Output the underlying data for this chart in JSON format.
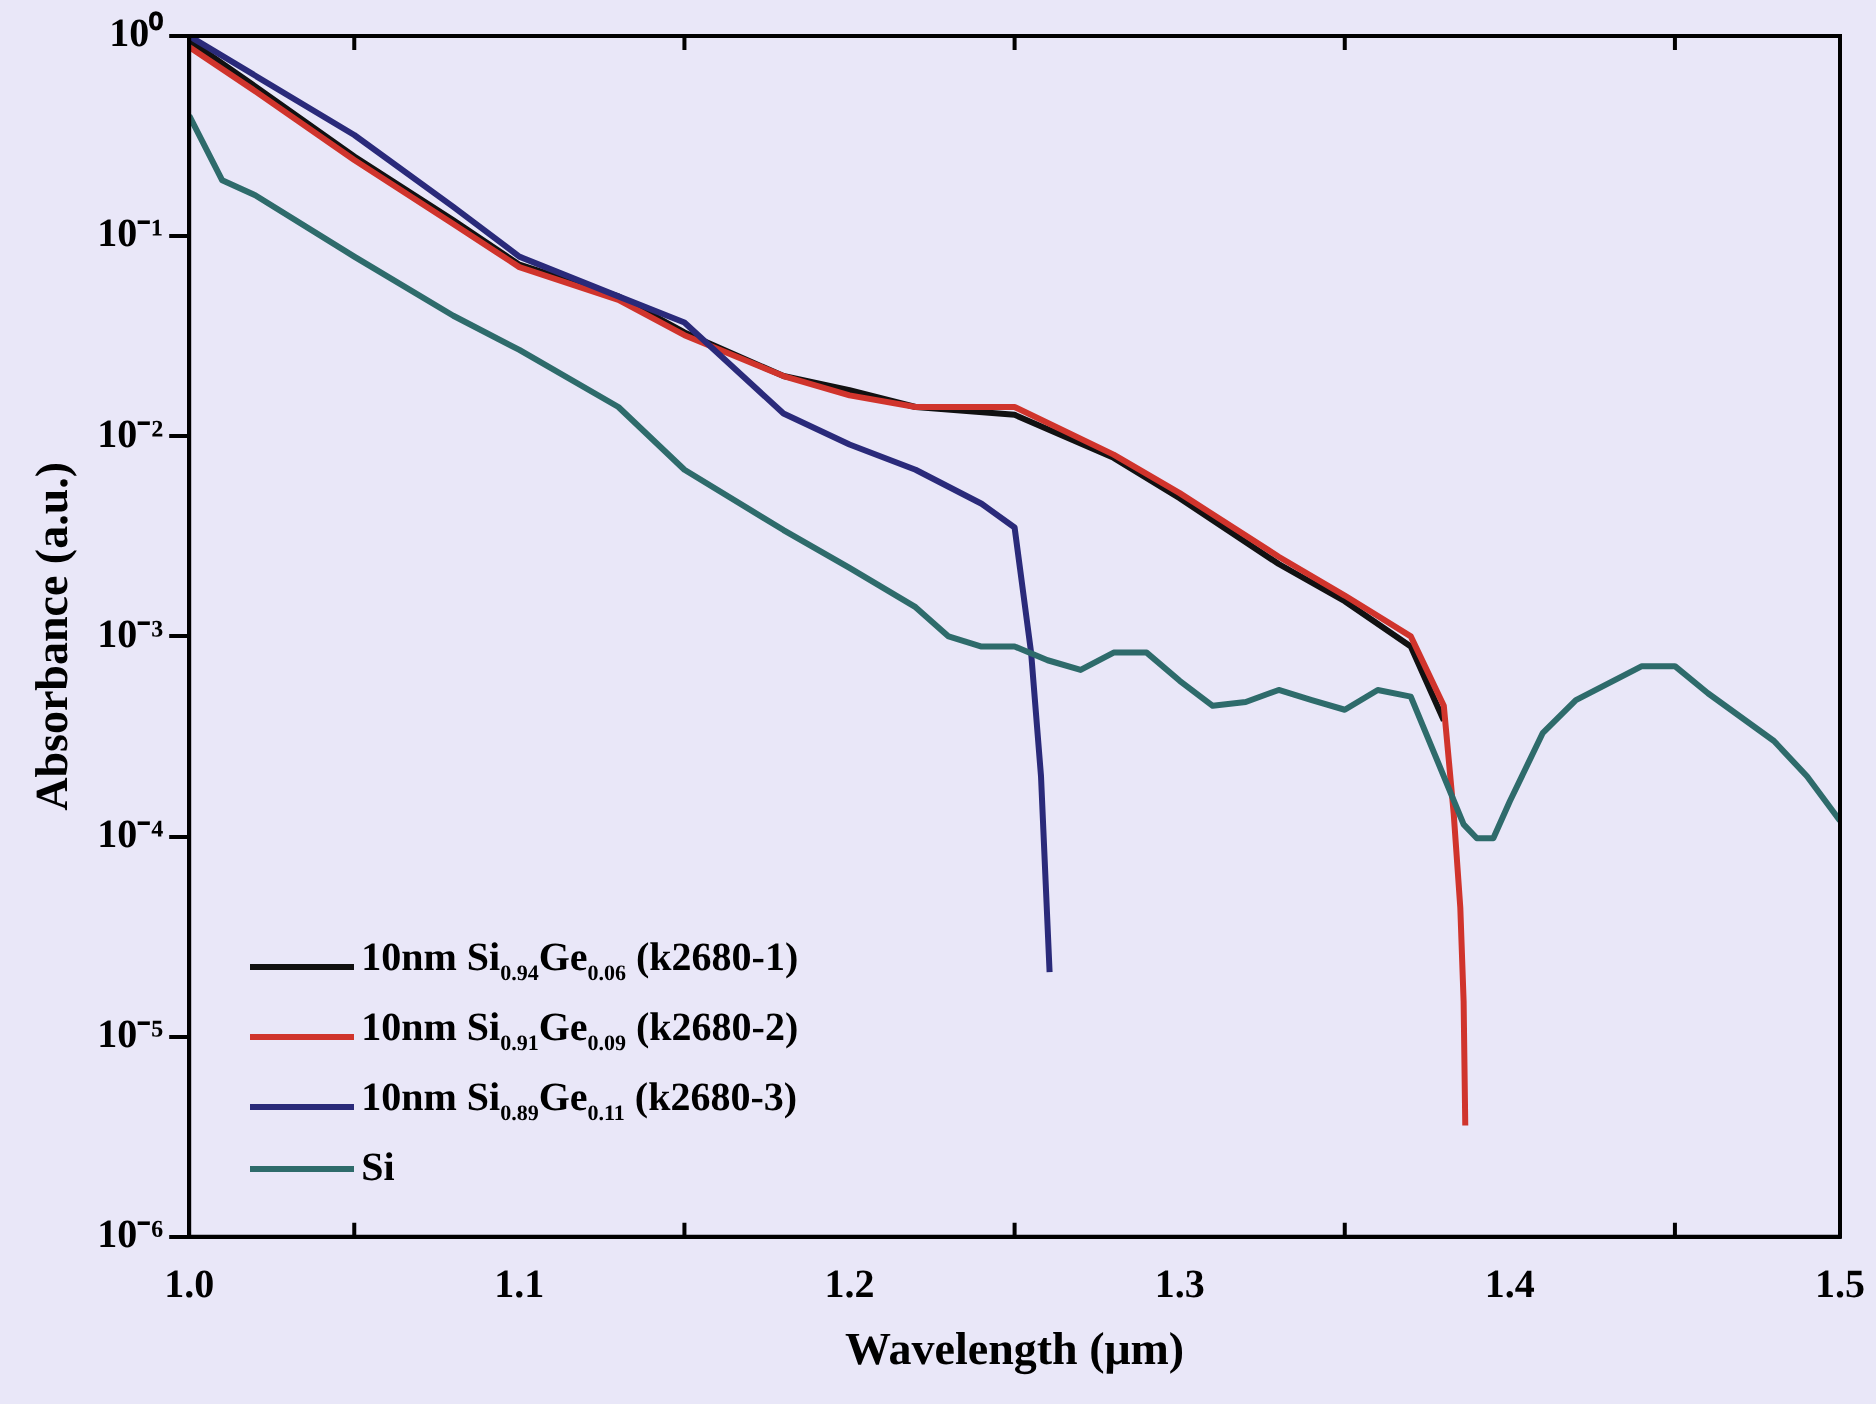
{
  "chart_data": {
    "type": "line",
    "xlabel": "Wavelength (μm)",
    "ylabel": "Absorbance (a.u.)",
    "log": "y",
    "grid": false,
    "legend": "bottom left",
    "marker": "none",
    "line_style": "solid",
    "xlim": [
      1.0,
      1.5
    ],
    "xticks": [
      {
        "value": 1.0,
        "label": "1.0"
      },
      {
        "value": 1.05,
        "label": null
      },
      {
        "value": 1.1,
        "label": "1.1"
      },
      {
        "value": 1.15,
        "label": null
      },
      {
        "value": 1.2,
        "label": "1.2"
      },
      {
        "value": 1.25,
        "label": null
      },
      {
        "value": 1.3,
        "label": "1.3"
      },
      {
        "value": 1.35,
        "label": null
      },
      {
        "value": 1.4,
        "label": "1.4"
      },
      {
        "value": 1.45,
        "label": null
      },
      {
        "value": 1.5,
        "label": "1.5"
      }
    ],
    "ylim": [
      1e-06,
      1
    ],
    "yticks": [
      {
        "value": 1,
        "label": "10⁰"
      },
      {
        "value": 0.1,
        "label": "10⁻¹"
      },
      {
        "value": 0.01,
        "label": "10⁻²"
      },
      {
        "value": 0.001,
        "label": "10⁻³"
      },
      {
        "value": 0.0001,
        "label": "10⁻⁴"
      },
      {
        "value": 1e-05,
        "label": "10⁻⁵"
      },
      {
        "value": 1e-06,
        "label": "10⁻⁶"
      }
    ],
    "series": [
      {
        "name": "10nm Si$_{0.94}$Ge$_{0.06}$ (k2680-1)",
        "color": "#111111",
        "x": [
          1.0,
          1.02,
          1.05,
          1.08,
          1.1,
          1.13,
          1.15,
          1.18,
          1.2,
          1.22,
          1.25,
          1.28,
          1.3,
          1.33,
          1.35,
          1.37,
          1.38
        ],
        "values": [
          0.95,
          0.56,
          0.25,
          0.12,
          0.072,
          0.05,
          0.033,
          0.02,
          0.017,
          0.014,
          0.0128,
          0.0078,
          0.0049,
          0.0023,
          0.0015,
          0.00089,
          0.00038
        ]
      },
      {
        "name": "10nm Si$_{0.91}$Ge$_{0.09}$ (k2680-2)",
        "color": "#d0342c",
        "x": [
          1.0,
          1.02,
          1.05,
          1.08,
          1.1,
          1.13,
          1.15,
          1.18,
          1.2,
          1.22,
          1.25,
          1.28,
          1.3,
          1.33,
          1.35,
          1.37,
          1.38,
          1.383,
          1.385,
          1.386,
          1.3865
        ],
        "values": [
          0.88,
          0.53,
          0.24,
          0.115,
          0.07,
          0.048,
          0.032,
          0.02,
          0.016,
          0.014,
          0.014,
          0.0081,
          0.0052,
          0.0025,
          0.0016,
          0.001,
          0.00045,
          0.00013,
          4.4e-05,
          1.5e-05,
          3.6e-06
        ]
      },
      {
        "name": "10nm Si$_{0.89}$Ge$_{0.11}$ (k2680-3)",
        "color": "#2a2a7a",
        "x": [
          1.0,
          1.05,
          1.08,
          1.1,
          1.13,
          1.15,
          1.18,
          1.2,
          1.22,
          1.24,
          1.25,
          1.255,
          1.258,
          1.2606
        ],
        "values": [
          1.0,
          0.32,
          0.14,
          0.079,
          0.05,
          0.037,
          0.013,
          0.0091,
          0.0068,
          0.0046,
          0.0035,
          0.00083,
          0.0002,
          2.1e-05
        ]
      },
      {
        "name": "Si",
        "color": "#2e6b6b",
        "x": [
          1.0,
          1.01,
          1.02,
          1.05,
          1.08,
          1.1,
          1.13,
          1.15,
          1.18,
          1.2,
          1.22,
          1.23,
          1.24,
          1.25,
          1.26,
          1.27,
          1.28,
          1.29,
          1.3,
          1.31,
          1.32,
          1.33,
          1.34,
          1.35,
          1.36,
          1.37,
          1.38,
          1.386,
          1.39,
          1.395,
          1.4,
          1.41,
          1.42,
          1.44,
          1.45,
          1.46,
          1.48,
          1.49,
          1.5
        ],
        "values": [
          0.4,
          0.19,
          0.16,
          0.079,
          0.04,
          0.027,
          0.014,
          0.0068,
          0.0034,
          0.0022,
          0.0014,
          0.001,
          0.00089,
          0.00089,
          0.00076,
          0.00068,
          0.00083,
          0.00083,
          0.0006,
          0.00045,
          0.00047,
          0.00054,
          0.00048,
          0.00043,
          0.00054,
          0.0005,
          0.0002,
          0.000115,
          9.8e-05,
          9.8e-05,
          0.00015,
          0.00033,
          0.00048,
          0.00071,
          0.00071,
          0.00052,
          0.0003,
          0.0002,
          0.00012
        ]
      }
    ]
  }
}
